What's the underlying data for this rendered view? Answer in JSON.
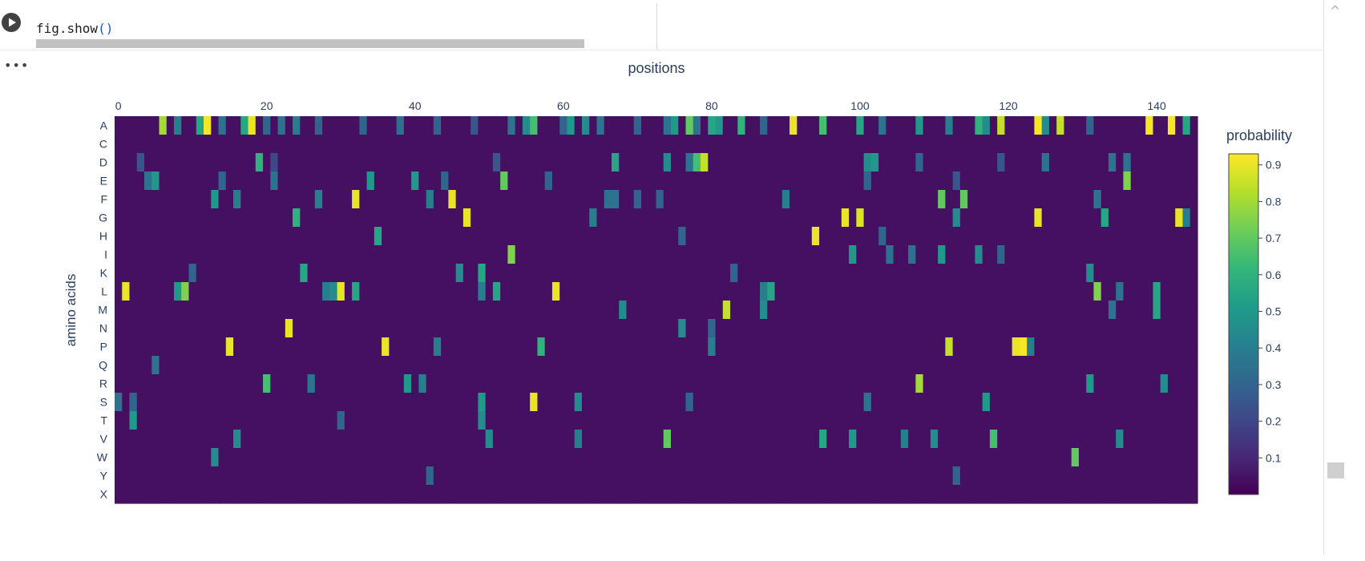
{
  "cell": {
    "code_text": "fig.show",
    "code_parens": "()"
  },
  "chart_data": {
    "type": "heatmap",
    "title": "positions",
    "xlabel": "positions",
    "ylabel": "amino acids",
    "x_range": [
      0,
      145
    ],
    "x_ticks": [
      0,
      20,
      40,
      60,
      80,
      100,
      120,
      140
    ],
    "y_categories": [
      "A",
      "C",
      "D",
      "E",
      "F",
      "G",
      "H",
      "I",
      "K",
      "L",
      "M",
      "N",
      "P",
      "Q",
      "R",
      "S",
      "T",
      "V",
      "W",
      "Y",
      "X"
    ],
    "colorbar": {
      "title": "probability",
      "ticks": [
        0.1,
        0.2,
        0.3,
        0.4,
        0.5,
        0.6,
        0.7,
        0.8,
        0.9
      ],
      "min": 0,
      "max": 0.93
    },
    "colorscale": [
      "#440154",
      "#482878",
      "#3e4989",
      "#31688e",
      "#26828e",
      "#1f9e89",
      "#35b779",
      "#6ece58",
      "#b5de2b",
      "#fde725"
    ],
    "background_value": 0.04,
    "highlights": [
      {
        "aa": "A",
        "x": 6,
        "v": 0.8
      },
      {
        "aa": "A",
        "x": 8,
        "v": 0.4
      },
      {
        "aa": "A",
        "x": 11,
        "v": 0.55
      },
      {
        "aa": "A",
        "x": 12,
        "v": 0.92
      },
      {
        "aa": "A",
        "x": 14,
        "v": 0.35
      },
      {
        "aa": "A",
        "x": 17,
        "v": 0.55
      },
      {
        "aa": "A",
        "x": 18,
        "v": 0.9
      },
      {
        "aa": "A",
        "x": 20,
        "v": 0.3
      },
      {
        "aa": "A",
        "x": 22,
        "v": 0.35
      },
      {
        "aa": "A",
        "x": 24,
        "v": 0.4
      },
      {
        "aa": "A",
        "x": 27,
        "v": 0.3
      },
      {
        "aa": "A",
        "x": 33,
        "v": 0.3
      },
      {
        "aa": "A",
        "x": 38,
        "v": 0.35
      },
      {
        "aa": "A",
        "x": 43,
        "v": 0.3
      },
      {
        "aa": "A",
        "x": 48,
        "v": 0.25
      },
      {
        "aa": "A",
        "x": 53,
        "v": 0.35
      },
      {
        "aa": "A",
        "x": 55,
        "v": 0.45
      },
      {
        "aa": "A",
        "x": 56,
        "v": 0.65
      },
      {
        "aa": "A",
        "x": 60,
        "v": 0.3
      },
      {
        "aa": "A",
        "x": 61,
        "v": 0.5
      },
      {
        "aa": "A",
        "x": 63,
        "v": 0.45
      },
      {
        "aa": "A",
        "x": 65,
        "v": 0.35
      },
      {
        "aa": "A",
        "x": 70,
        "v": 0.3
      },
      {
        "aa": "A",
        "x": 74,
        "v": 0.35
      },
      {
        "aa": "A",
        "x": 75,
        "v": 0.5
      },
      {
        "aa": "A",
        "x": 77,
        "v": 0.7
      },
      {
        "aa": "A",
        "x": 78,
        "v": 0.35
      },
      {
        "aa": "A",
        "x": 80,
        "v": 0.55
      },
      {
        "aa": "A",
        "x": 81,
        "v": 0.5
      },
      {
        "aa": "A",
        "x": 84,
        "v": 0.6
      },
      {
        "aa": "A",
        "x": 87,
        "v": 0.3
      },
      {
        "aa": "A",
        "x": 91,
        "v": 0.9
      },
      {
        "aa": "A",
        "x": 95,
        "v": 0.65
      },
      {
        "aa": "A",
        "x": 100,
        "v": 0.55
      },
      {
        "aa": "A",
        "x": 103,
        "v": 0.35
      },
      {
        "aa": "A",
        "x": 108,
        "v": 0.5
      },
      {
        "aa": "A",
        "x": 112,
        "v": 0.4
      },
      {
        "aa": "A",
        "x": 116,
        "v": 0.6
      },
      {
        "aa": "A",
        "x": 117,
        "v": 0.45
      },
      {
        "aa": "A",
        "x": 119,
        "v": 0.85
      },
      {
        "aa": "A",
        "x": 124,
        "v": 0.92
      },
      {
        "aa": "A",
        "x": 125,
        "v": 0.45
      },
      {
        "aa": "A",
        "x": 127,
        "v": 0.85
      },
      {
        "aa": "A",
        "x": 131,
        "v": 0.3
      },
      {
        "aa": "A",
        "x": 139,
        "v": 0.92
      },
      {
        "aa": "A",
        "x": 142,
        "v": 0.92
      },
      {
        "aa": "A",
        "x": 144,
        "v": 0.55
      },
      {
        "aa": "D",
        "x": 3,
        "v": 0.25
      },
      {
        "aa": "D",
        "x": 19,
        "v": 0.6
      },
      {
        "aa": "D",
        "x": 21,
        "v": 0.2
      },
      {
        "aa": "D",
        "x": 51,
        "v": 0.25
      },
      {
        "aa": "D",
        "x": 67,
        "v": 0.55
      },
      {
        "aa": "D",
        "x": 74,
        "v": 0.45
      },
      {
        "aa": "D",
        "x": 77,
        "v": 0.35
      },
      {
        "aa": "D",
        "x": 78,
        "v": 0.65
      },
      {
        "aa": "D",
        "x": 79,
        "v": 0.85
      },
      {
        "aa": "D",
        "x": 101,
        "v": 0.45
      },
      {
        "aa": "D",
        "x": 102,
        "v": 0.5
      },
      {
        "aa": "D",
        "x": 108,
        "v": 0.3
      },
      {
        "aa": "D",
        "x": 119,
        "v": 0.25
      },
      {
        "aa": "D",
        "x": 125,
        "v": 0.35
      },
      {
        "aa": "D",
        "x": 134,
        "v": 0.35
      },
      {
        "aa": "D",
        "x": 136,
        "v": 0.35
      },
      {
        "aa": "E",
        "x": 4,
        "v": 0.35
      },
      {
        "aa": "E",
        "x": 5,
        "v": 0.5
      },
      {
        "aa": "E",
        "x": 14,
        "v": 0.3
      },
      {
        "aa": "E",
        "x": 21,
        "v": 0.35
      },
      {
        "aa": "E",
        "x": 34,
        "v": 0.5
      },
      {
        "aa": "E",
        "x": 40,
        "v": 0.5
      },
      {
        "aa": "E",
        "x": 44,
        "v": 0.3
      },
      {
        "aa": "E",
        "x": 52,
        "v": 0.7
      },
      {
        "aa": "E",
        "x": 58,
        "v": 0.3
      },
      {
        "aa": "E",
        "x": 101,
        "v": 0.3
      },
      {
        "aa": "E",
        "x": 113,
        "v": 0.25
      },
      {
        "aa": "E",
        "x": 136,
        "v": 0.75
      },
      {
        "aa": "F",
        "x": 13,
        "v": 0.5
      },
      {
        "aa": "F",
        "x": 16,
        "v": 0.4
      },
      {
        "aa": "F",
        "x": 27,
        "v": 0.4
      },
      {
        "aa": "F",
        "x": 32,
        "v": 0.9
      },
      {
        "aa": "F",
        "x": 42,
        "v": 0.4
      },
      {
        "aa": "F",
        "x": 45,
        "v": 0.9
      },
      {
        "aa": "F",
        "x": 66,
        "v": 0.35
      },
      {
        "aa": "F",
        "x": 67,
        "v": 0.35
      },
      {
        "aa": "F",
        "x": 70,
        "v": 0.3
      },
      {
        "aa": "F",
        "x": 73,
        "v": 0.3
      },
      {
        "aa": "F",
        "x": 90,
        "v": 0.4
      },
      {
        "aa": "F",
        "x": 111,
        "v": 0.7
      },
      {
        "aa": "F",
        "x": 114,
        "v": 0.7
      },
      {
        "aa": "F",
        "x": 132,
        "v": 0.35
      },
      {
        "aa": "G",
        "x": 24,
        "v": 0.6
      },
      {
        "aa": "G",
        "x": 47,
        "v": 0.9
      },
      {
        "aa": "G",
        "x": 64,
        "v": 0.4
      },
      {
        "aa": "G",
        "x": 98,
        "v": 0.9
      },
      {
        "aa": "G",
        "x": 100,
        "v": 0.88
      },
      {
        "aa": "G",
        "x": 113,
        "v": 0.45
      },
      {
        "aa": "G",
        "x": 124,
        "v": 0.9
      },
      {
        "aa": "G",
        "x": 133,
        "v": 0.55
      },
      {
        "aa": "G",
        "x": 143,
        "v": 0.9
      },
      {
        "aa": "G",
        "x": 144,
        "v": 0.4
      },
      {
        "aa": "H",
        "x": 35,
        "v": 0.55
      },
      {
        "aa": "H",
        "x": 76,
        "v": 0.3
      },
      {
        "aa": "H",
        "x": 94,
        "v": 0.9
      },
      {
        "aa": "H",
        "x": 103,
        "v": 0.3
      },
      {
        "aa": "I",
        "x": 53,
        "v": 0.75
      },
      {
        "aa": "I",
        "x": 99,
        "v": 0.5
      },
      {
        "aa": "I",
        "x": 111,
        "v": 0.5
      },
      {
        "aa": "I",
        "x": 116,
        "v": 0.45
      },
      {
        "aa": "I",
        "x": 104,
        "v": 0.35
      },
      {
        "aa": "I",
        "x": 107,
        "v": 0.35
      },
      {
        "aa": "I",
        "x": 119,
        "v": 0.3
      },
      {
        "aa": "K",
        "x": 10,
        "v": 0.3
      },
      {
        "aa": "K",
        "x": 25,
        "v": 0.55
      },
      {
        "aa": "K",
        "x": 46,
        "v": 0.45
      },
      {
        "aa": "K",
        "x": 49,
        "v": 0.55
      },
      {
        "aa": "K",
        "x": 131,
        "v": 0.45
      },
      {
        "aa": "K",
        "x": 83,
        "v": 0.3
      },
      {
        "aa": "L",
        "x": 1,
        "v": 0.9
      },
      {
        "aa": "L",
        "x": 8,
        "v": 0.5
      },
      {
        "aa": "L",
        "x": 9,
        "v": 0.75
      },
      {
        "aa": "L",
        "x": 28,
        "v": 0.4
      },
      {
        "aa": "L",
        "x": 29,
        "v": 0.45
      },
      {
        "aa": "L",
        "x": 30,
        "v": 0.9
      },
      {
        "aa": "L",
        "x": 32,
        "v": 0.55
      },
      {
        "aa": "L",
        "x": 49,
        "v": 0.4
      },
      {
        "aa": "L",
        "x": 51,
        "v": 0.55
      },
      {
        "aa": "L",
        "x": 59,
        "v": 0.9
      },
      {
        "aa": "L",
        "x": 87,
        "v": 0.4
      },
      {
        "aa": "L",
        "x": 88,
        "v": 0.55
      },
      {
        "aa": "L",
        "x": 132,
        "v": 0.75
      },
      {
        "aa": "L",
        "x": 135,
        "v": 0.35
      },
      {
        "aa": "L",
        "x": 140,
        "v": 0.55
      },
      {
        "aa": "M",
        "x": 68,
        "v": 0.45
      },
      {
        "aa": "M",
        "x": 82,
        "v": 0.85
      },
      {
        "aa": "M",
        "x": 87,
        "v": 0.45
      },
      {
        "aa": "M",
        "x": 134,
        "v": 0.35
      },
      {
        "aa": "M",
        "x": 140,
        "v": 0.55
      },
      {
        "aa": "N",
        "x": 23,
        "v": 0.9
      },
      {
        "aa": "N",
        "x": 76,
        "v": 0.45
      },
      {
        "aa": "N",
        "x": 80,
        "v": 0.3
      },
      {
        "aa": "P",
        "x": 15,
        "v": 0.9
      },
      {
        "aa": "P",
        "x": 36,
        "v": 0.9
      },
      {
        "aa": "P",
        "x": 43,
        "v": 0.4
      },
      {
        "aa": "P",
        "x": 57,
        "v": 0.6
      },
      {
        "aa": "P",
        "x": 80,
        "v": 0.4
      },
      {
        "aa": "P",
        "x": 112,
        "v": 0.85
      },
      {
        "aa": "P",
        "x": 121,
        "v": 0.9
      },
      {
        "aa": "P",
        "x": 122,
        "v": 0.92
      },
      {
        "aa": "P",
        "x": 123,
        "v": 0.4
      },
      {
        "aa": "Q",
        "x": 5,
        "v": 0.35
      },
      {
        "aa": "R",
        "x": 20,
        "v": 0.65
      },
      {
        "aa": "R",
        "x": 26,
        "v": 0.35
      },
      {
        "aa": "R",
        "x": 39,
        "v": 0.5
      },
      {
        "aa": "R",
        "x": 41,
        "v": 0.4
      },
      {
        "aa": "R",
        "x": 108,
        "v": 0.8
      },
      {
        "aa": "R",
        "x": 131,
        "v": 0.5
      },
      {
        "aa": "R",
        "x": 141,
        "v": 0.45
      },
      {
        "aa": "S",
        "x": 0,
        "v": 0.35
      },
      {
        "aa": "S",
        "x": 2,
        "v": 0.3
      },
      {
        "aa": "S",
        "x": 49,
        "v": 0.5
      },
      {
        "aa": "S",
        "x": 56,
        "v": 0.9
      },
      {
        "aa": "S",
        "x": 62,
        "v": 0.45
      },
      {
        "aa": "S",
        "x": 77,
        "v": 0.3
      },
      {
        "aa": "S",
        "x": 101,
        "v": 0.35
      },
      {
        "aa": "S",
        "x": 117,
        "v": 0.5
      },
      {
        "aa": "T",
        "x": 2,
        "v": 0.5
      },
      {
        "aa": "T",
        "x": 49,
        "v": 0.45
      },
      {
        "aa": "T",
        "x": 30,
        "v": 0.3
      },
      {
        "aa": "V",
        "x": 16,
        "v": 0.45
      },
      {
        "aa": "V",
        "x": 50,
        "v": 0.45
      },
      {
        "aa": "V",
        "x": 62,
        "v": 0.4
      },
      {
        "aa": "V",
        "x": 74,
        "v": 0.7
      },
      {
        "aa": "V",
        "x": 95,
        "v": 0.55
      },
      {
        "aa": "V",
        "x": 99,
        "v": 0.5
      },
      {
        "aa": "V",
        "x": 106,
        "v": 0.4
      },
      {
        "aa": "V",
        "x": 110,
        "v": 0.45
      },
      {
        "aa": "V",
        "x": 118,
        "v": 0.65
      },
      {
        "aa": "V",
        "x": 135,
        "v": 0.45
      },
      {
        "aa": "W",
        "x": 13,
        "v": 0.45
      },
      {
        "aa": "W",
        "x": 129,
        "v": 0.7
      },
      {
        "aa": "Y",
        "x": 42,
        "v": 0.3
      },
      {
        "aa": "Y",
        "x": 113,
        "v": 0.3
      }
    ]
  }
}
